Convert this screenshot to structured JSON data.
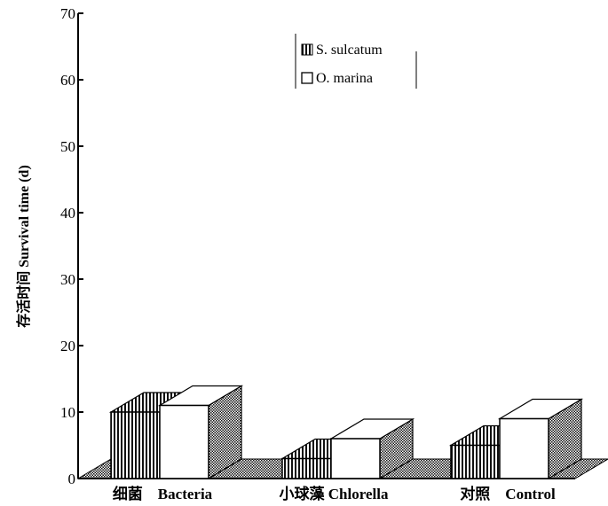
{
  "chart_data": {
    "type": "bar",
    "ylabel": "存活时间 Survival time (d)",
    "ylim": [
      0,
      70
    ],
    "yticks": [
      0,
      10,
      20,
      30,
      40,
      50,
      60,
      70
    ],
    "categories": [
      "细菌    Bacteria",
      "小球藻 Chlorella",
      "对照    Control"
    ],
    "series": [
      {
        "name": "S. sulcatum",
        "values": [
          10,
          3,
          5
        ],
        "pattern": "vertical-stripes"
      },
      {
        "name": "O. marina",
        "values": [
          11,
          6,
          9
        ],
        "pattern": "white"
      }
    ],
    "legend_position": "top-right",
    "grid": false,
    "style": "3d-bar"
  }
}
